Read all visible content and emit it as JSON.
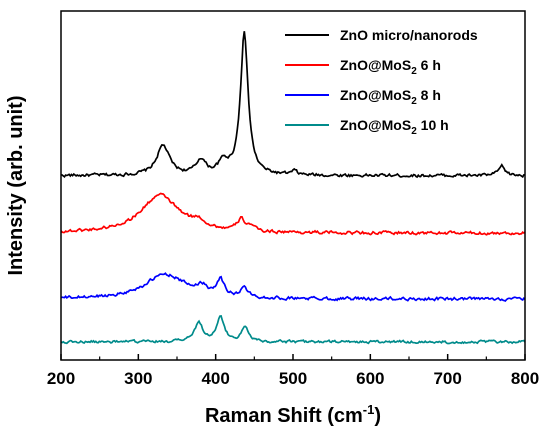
{
  "chart_data": {
    "type": "line",
    "xlabel": {
      "base": "Raman Shift (cm",
      "sup": "-1",
      "tail": ")"
    },
    "ylabel": "Intensity (arb. unit)",
    "xlim": [
      200,
      800
    ],
    "x_ticks": [
      "200",
      "300",
      "400",
      "500",
      "600",
      "700",
      "800"
    ],
    "grid": false,
    "legend_position": "top-right",
    "series": [
      {
        "name": {
          "base": "ZnO micro/nanorods",
          "sub": "",
          "tail": ""
        },
        "color": "#000000",
        "baseline": 0.0,
        "noise": 0.08,
        "peaks": [
          [
            332,
            0.9,
            10
          ],
          [
            381,
            0.45,
            7
          ],
          [
            410,
            0.35,
            8
          ],
          [
            437,
            4.3,
            6
          ],
          [
            502,
            0.12,
            4
          ],
          [
            770,
            0.28,
            5
          ]
        ]
      },
      {
        "name": {
          "base": "ZnO@MoS",
          "sub": "2",
          "tail": " 6 h"
        },
        "color": "#ff0000",
        "baseline": -1.75,
        "noise": 0.08,
        "peaks": [
          [
            328,
            1.15,
            30
          ],
          [
            378,
            0.2,
            10
          ],
          [
            433,
            0.35,
            6
          ],
          [
            445,
            0.15,
            5
          ]
        ]
      },
      {
        "name": {
          "base": "ZnO@MoS",
          "sub": "2",
          "tail": " 8 h"
        },
        "color": "#0000ff",
        "baseline": -3.75,
        "noise": 0.08,
        "peaks": [
          [
            335,
            0.75,
            32
          ],
          [
            382,
            0.25,
            8
          ],
          [
            406,
            0.5,
            6
          ],
          [
            437,
            0.3,
            5
          ]
        ]
      },
      {
        "name": {
          "base": "ZnO@MoS",
          "sub": "2",
          "tail": " 10 h"
        },
        "color": "#008b8b",
        "baseline": -5.05,
        "noise": 0.07,
        "peaks": [
          [
            378,
            0.55,
            7
          ],
          [
            406,
            0.72,
            6
          ],
          [
            438,
            0.42,
            6
          ]
        ]
      }
    ]
  }
}
